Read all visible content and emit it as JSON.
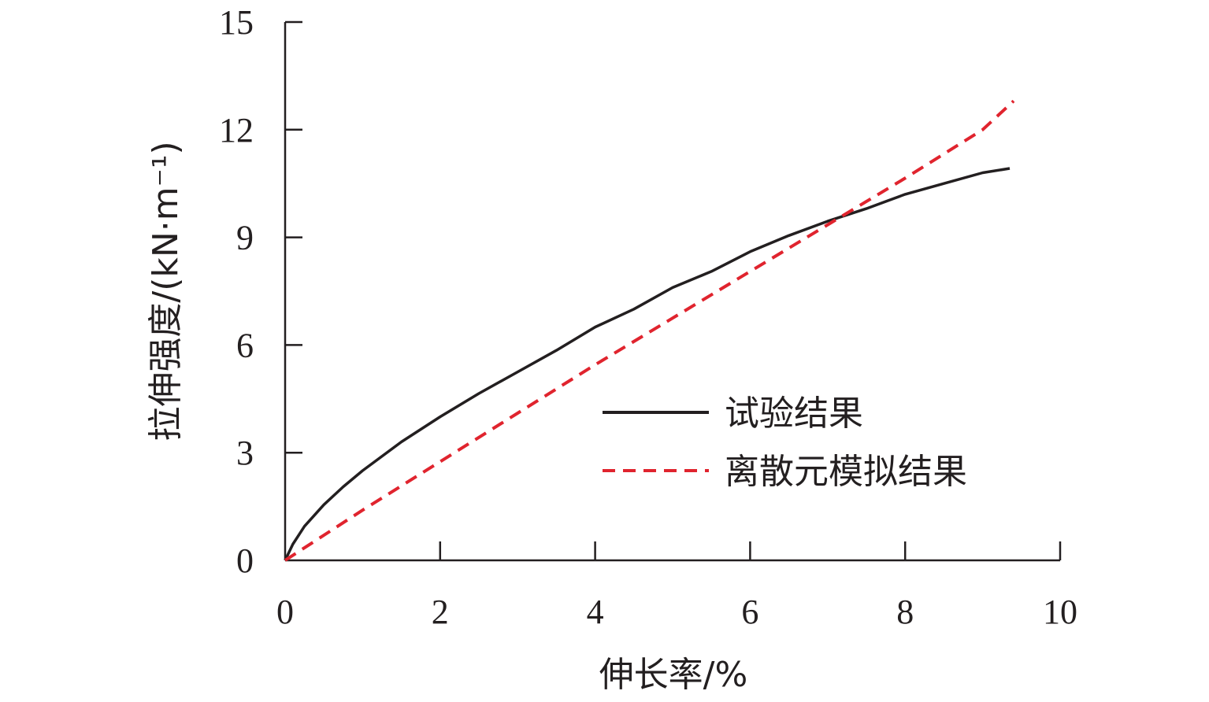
{
  "chart_data": {
    "type": "line",
    "xlabel": "伸长率/%",
    "ylabel": "拉伸强度/(kN·m⁻¹)",
    "xlim": [
      0,
      10
    ],
    "ylim": [
      0,
      15
    ],
    "x_ticks": [
      0,
      2,
      4,
      6,
      8,
      10
    ],
    "y_ticks": [
      0,
      3,
      6,
      9,
      12,
      15
    ],
    "x_tick_labels": [
      "0",
      "2",
      "4",
      "6",
      "8",
      "10"
    ],
    "y_tick_labels": [
      "0",
      "3",
      "6",
      "9",
      "12",
      "15"
    ],
    "grid": false,
    "legend_position": "center-right",
    "series": [
      {
        "name": "试验结果",
        "color": "#231f20",
        "style": "solid",
        "x": [
          0,
          0.1,
          0.25,
          0.5,
          0.75,
          1.0,
          1.5,
          2.0,
          2.5,
          3.0,
          3.5,
          4.0,
          4.5,
          5.0,
          5.5,
          6.0,
          6.5,
          7.0,
          7.5,
          8.0,
          8.5,
          9.0,
          9.35
        ],
        "y": [
          0,
          0.45,
          0.95,
          1.55,
          2.05,
          2.5,
          3.3,
          4.0,
          4.65,
          5.25,
          5.85,
          6.5,
          7.0,
          7.6,
          8.05,
          8.6,
          9.05,
          9.45,
          9.8,
          10.2,
          10.5,
          10.8,
          10.92
        ]
      },
      {
        "name": "离散元模拟结果",
        "color": "#e0242e",
        "style": "dashed",
        "x": [
          0,
          1,
          2,
          3,
          4,
          5,
          6,
          7,
          8,
          9,
          9.4
        ],
        "y": [
          0,
          1.4,
          2.75,
          4.1,
          5.45,
          6.75,
          8.05,
          9.35,
          10.65,
          12.0,
          12.8
        ]
      }
    ]
  }
}
